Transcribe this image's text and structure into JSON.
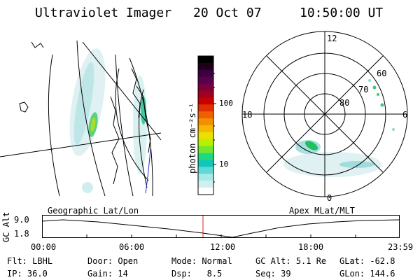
{
  "header": {
    "instrument": "Ultraviolet Imager",
    "date": "20 Oct 07",
    "time": "10:50:00 UT"
  },
  "panels": {
    "geo_label": "Geographic Lat/Lon",
    "polar_label": "Apex MLat/MLT"
  },
  "colorbar": {
    "unit_label": "photon cm⁻²s⁻¹",
    "ticks": [
      "100",
      "10"
    ],
    "colors": [
      "#000000",
      "#200018",
      "#3a0040",
      "#5a0050",
      "#7a0040",
      "#a00020",
      "#c80000",
      "#e03000",
      "#f06000",
      "#f49000",
      "#f5b800",
      "#e8e000",
      "#b8f000",
      "#70e830",
      "#20d880",
      "#10c8b8",
      "#60d8d8",
      "#a8e8e8",
      "#d0f0f0",
      "#ffffff"
    ]
  },
  "polar": {
    "mlt_labels": {
      "top": "12",
      "left": "18",
      "right": "6",
      "bottom": "0"
    },
    "lat_labels": [
      "60",
      "70",
      "80"
    ]
  },
  "altitude_plot": {
    "axis_label": "GC Alt",
    "y_ticks": [
      "9.0",
      "1.8"
    ],
    "x_ticks": [
      "00:00",
      "06:00",
      "12:00",
      "18:00",
      "23:59"
    ],
    "current_time_marker": "10:50"
  },
  "status": {
    "filter": {
      "label": "Flt:",
      "value": "LBHL"
    },
    "door": {
      "label": "Door:",
      "value": "Open"
    },
    "mode": {
      "label": "Mode:",
      "value": "Normal"
    },
    "gc_alt": {
      "label": "GC Alt:",
      "value": "5.1 Re"
    },
    "glat": {
      "label": "GLat:",
      "value": "-62.8"
    },
    "ip": {
      "label": "IP:",
      "value": "36.0"
    },
    "gain": {
      "label": "Gain:",
      "value": "14"
    },
    "dsp": {
      "label": "Dsp:",
      "value": "8.5"
    },
    "seq": {
      "label": "Seq:",
      "value": "39"
    },
    "glon": {
      "label": "GLon:",
      "value": "144.6"
    }
  }
}
